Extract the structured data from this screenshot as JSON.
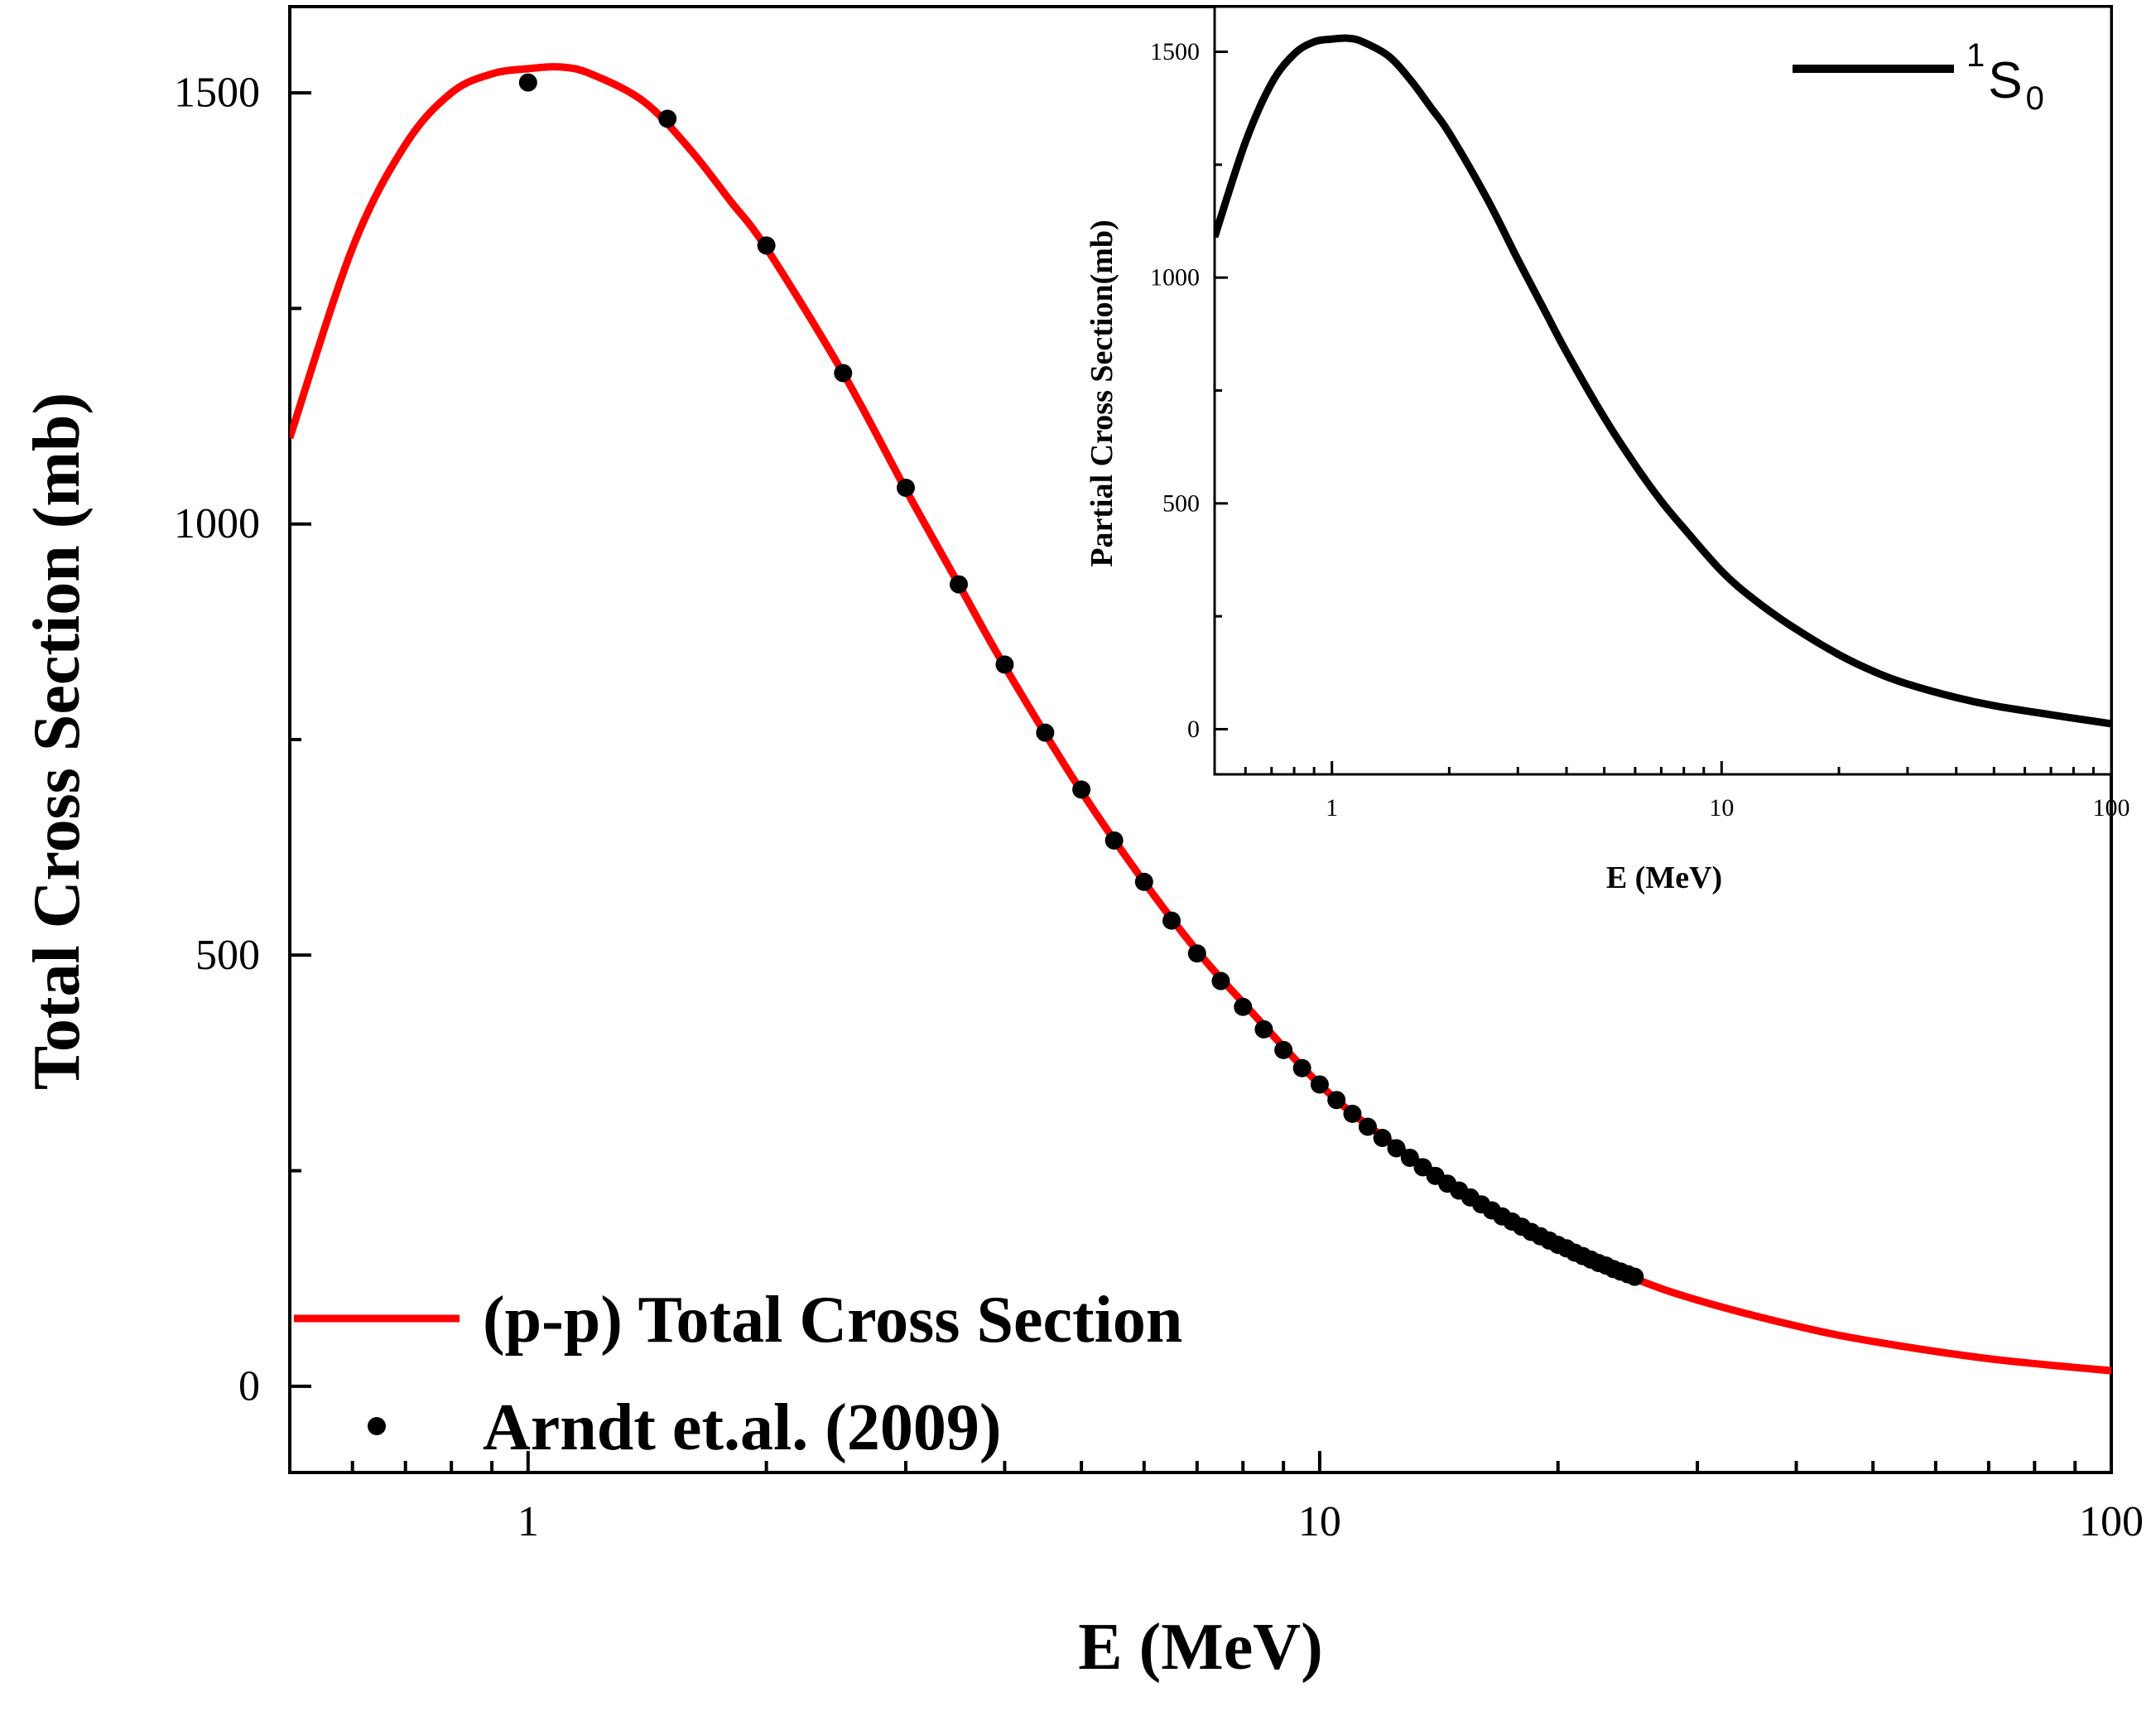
{
  "chart_data": [
    {
      "type": "line",
      "name": "main",
      "xscale": "log",
      "xlim": [
        0.5,
        100
      ],
      "ylim": [
        -100,
        1600
      ],
      "xlabel": "E (MeV)",
      "ylabel": "Total Cross Section (mb)",
      "xticks": [
        1,
        10,
        100
      ],
      "xtick_labels": [
        "1",
        "10",
        "100"
      ],
      "yticks": [
        0,
        500,
        1000,
        1500
      ],
      "ytick_labels": [
        "0",
        "500",
        "1000",
        "1500"
      ],
      "legend_position": "bottom-left",
      "series": [
        {
          "name": "(p-p) Total Cross Section",
          "style": "line",
          "color": "#ff0000",
          "x": [
            0.5,
            0.6,
            0.7,
            0.8,
            0.9,
            1.0,
            1.1,
            1.2,
            1.4,
            1.6,
            1.8,
            2.0,
            2.5,
            3.0,
            3.5,
            4.0,
            5.0,
            6.0,
            7.0,
            8.0,
            10.0,
            12.0,
            15.0,
            20.0,
            25.0,
            30.0,
            40.0,
            50.0,
            70.0,
            100.0
          ],
          "values": [
            1100,
            1320,
            1440,
            1500,
            1522,
            1528,
            1530,
            1522,
            1490,
            1435,
            1375,
            1320,
            1175,
            1040,
            930,
            835,
            690,
            585,
            505,
            445,
            350,
            290,
            230,
            165,
            125,
            100,
            70,
            52,
            32,
            18
          ]
        },
        {
          "name": "Arndt et.al. (2009)",
          "style": "scatter",
          "color": "#000000",
          "x": [
            1.0,
            1.5,
            2.0,
            2.5,
            3.0,
            3.5,
            4.0,
            4.5,
            5.0,
            5.5,
            6.0,
            6.5,
            7.0,
            7.5,
            8.0,
            8.5,
            9.0,
            9.5,
            10.0,
            10.5,
            11.0,
            11.5,
            12.0,
            12.5,
            13.0,
            13.5,
            14.0,
            14.5,
            15.0,
            15.5,
            16.0,
            16.5,
            17.0,
            17.5,
            18.0,
            18.5,
            19.0,
            19.5,
            20.0,
            20.5,
            21.0,
            21.5,
            22.0,
            22.5,
            23.0,
            23.5,
            24.0,
            24.5,
            25.0
          ],
          "values": [
            1512,
            1470,
            1323,
            1175,
            1042,
            930,
            837,
            758,
            692,
            633,
            585,
            540,
            502,
            470,
            440,
            414,
            390,
            369,
            350,
            332,
            316,
            301,
            288,
            276,
            265,
            254,
            244,
            235,
            227,
            219,
            211,
            204,
            197,
            191,
            185,
            179,
            174,
            169,
            164,
            160,
            155,
            151,
            147,
            143,
            140,
            136,
            133,
            130,
            127
          ]
        }
      ]
    },
    {
      "type": "line",
      "name": "inset",
      "xscale": "log",
      "xlim": [
        0.5,
        100
      ],
      "ylim": [
        -100,
        1600
      ],
      "xlabel": "E (MeV)",
      "ylabel": "Partial Cross Section(mb)",
      "xticks": [
        1,
        10,
        100
      ],
      "xtick_labels": [
        "1",
        "10",
        "100"
      ],
      "yticks": [
        0,
        500,
        1000,
        1500
      ],
      "ytick_labels": [
        "0",
        "500",
        "1000",
        "1500"
      ],
      "legend_position": "top-right",
      "legend_label": "S",
      "legend_superscript": "1",
      "legend_subscript": "0",
      "series": [
        {
          "name": "1S0",
          "style": "line",
          "color": "#000000",
          "x": [
            0.5,
            0.6,
            0.7,
            0.8,
            0.9,
            1.0,
            1.1,
            1.2,
            1.4,
            1.6,
            1.8,
            2.0,
            2.5,
            3.0,
            3.5,
            4.0,
            5.0,
            6.0,
            7.0,
            8.0,
            10.0,
            12.0,
            15.0,
            20.0,
            25.0,
            30.0,
            40.0,
            50.0,
            70.0,
            100.0
          ],
          "values": [
            1090,
            1300,
            1430,
            1495,
            1522,
            1528,
            1530,
            1522,
            1490,
            1435,
            1375,
            1320,
            1175,
            1040,
            930,
            835,
            690,
            585,
            505,
            445,
            350,
            290,
            230,
            165,
            125,
            100,
            70,
            52,
            32,
            12
          ]
        }
      ]
    }
  ]
}
